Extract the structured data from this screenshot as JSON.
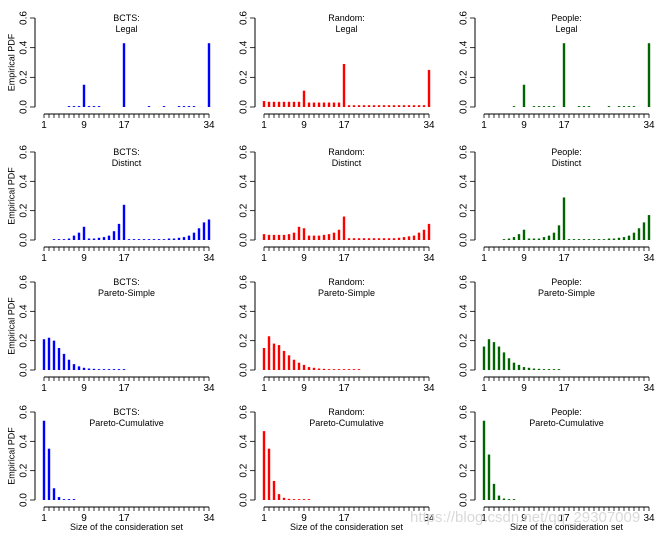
{
  "figure": {
    "ylabel": "Empirical PDF",
    "xlabel": "Size of the consideration set",
    "watermark": "https://blog.csdn.net/qq_29307009"
  },
  "chart_data": {
    "type": "bar",
    "layout": "4 rows x 3 columns",
    "x_ticks": [
      1,
      9,
      17,
      34
    ],
    "x_range": [
      1,
      34
    ],
    "y_ticks": [
      "0.0",
      "0.2",
      "0.4",
      "0.6"
    ],
    "y_range": [
      0,
      0.6
    ],
    "grid": false,
    "methods": [
      {
        "name": "BCTS",
        "color": "#0000ff"
      },
      {
        "name": "Random",
        "color": "#ff0000"
      },
      {
        "name": "People",
        "color": "#006400"
      }
    ],
    "rows": [
      {
        "measure": "Legal",
        "series": {
          "BCTS": [
            [
              6,
              0.006
            ],
            [
              7,
              0.006
            ],
            [
              8,
              0.006
            ],
            [
              9,
              0.15
            ],
            [
              10,
              0.006
            ],
            [
              11,
              0.006
            ],
            [
              12,
              0.006
            ],
            [
              17,
              0.43
            ],
            [
              22,
              0.006
            ],
            [
              25,
              0.006
            ],
            [
              28,
              0.006
            ],
            [
              29,
              0.006
            ],
            [
              30,
              0.006
            ],
            [
              31,
              0.006
            ],
            [
              34,
              0.43
            ]
          ],
          "Random": [
            [
              1,
              0.04
            ],
            [
              2,
              0.035
            ],
            [
              3,
              0.035
            ],
            [
              4,
              0.035
            ],
            [
              5,
              0.035
            ],
            [
              6,
              0.035
            ],
            [
              7,
              0.035
            ],
            [
              8,
              0.035
            ],
            [
              9,
              0.11
            ],
            [
              10,
              0.03
            ],
            [
              11,
              0.03
            ],
            [
              12,
              0.03
            ],
            [
              13,
              0.03
            ],
            [
              14,
              0.03
            ],
            [
              15,
              0.03
            ],
            [
              16,
              0.03
            ],
            [
              17,
              0.29
            ],
            [
              18,
              0.012
            ],
            [
              19,
              0.012
            ],
            [
              20,
              0.012
            ],
            [
              21,
              0.012
            ],
            [
              22,
              0.012
            ],
            [
              23,
              0.012
            ],
            [
              24,
              0.012
            ],
            [
              25,
              0.012
            ],
            [
              26,
              0.012
            ],
            [
              27,
              0.012
            ],
            [
              28,
              0.012
            ],
            [
              29,
              0.012
            ],
            [
              30,
              0.012
            ],
            [
              31,
              0.012
            ],
            [
              32,
              0.012
            ],
            [
              33,
              0.012
            ],
            [
              34,
              0.25
            ]
          ],
          "People": [
            [
              7,
              0.006
            ],
            [
              9,
              0.15
            ],
            [
              11,
              0.006
            ],
            [
              12,
              0.006
            ],
            [
              13,
              0.006
            ],
            [
              14,
              0.006
            ],
            [
              15,
              0.006
            ],
            [
              17,
              0.43
            ],
            [
              20,
              0.006
            ],
            [
              21,
              0.006
            ],
            [
              22,
              0.006
            ],
            [
              26,
              0.006
            ],
            [
              28,
              0.006
            ],
            [
              29,
              0.006
            ],
            [
              30,
              0.006
            ],
            [
              31,
              0.006
            ],
            [
              34,
              0.43
            ]
          ]
        }
      },
      {
        "measure": "Distinct",
        "series": {
          "BCTS": [
            [
              3,
              0.006
            ],
            [
              4,
              0.006
            ],
            [
              5,
              0.006
            ],
            [
              6,
              0.01
            ],
            [
              7,
              0.03
            ],
            [
              8,
              0.05
            ],
            [
              9,
              0.09
            ],
            [
              10,
              0.01
            ],
            [
              11,
              0.01
            ],
            [
              12,
              0.015
            ],
            [
              13,
              0.02
            ],
            [
              14,
              0.03
            ],
            [
              15,
              0.06
            ],
            [
              16,
              0.11
            ],
            [
              17,
              0.24
            ],
            [
              18,
              0.006
            ],
            [
              19,
              0.006
            ],
            [
              20,
              0.006
            ],
            [
              21,
              0.006
            ],
            [
              22,
              0.006
            ],
            [
              23,
              0.006
            ],
            [
              24,
              0.006
            ],
            [
              25,
              0.006
            ],
            [
              26,
              0.01
            ],
            [
              27,
              0.01
            ],
            [
              28,
              0.015
            ],
            [
              29,
              0.02
            ],
            [
              30,
              0.03
            ],
            [
              31,
              0.05
            ],
            [
              32,
              0.08
            ],
            [
              33,
              0.12
            ],
            [
              34,
              0.14
            ]
          ],
          "Random": [
            [
              1,
              0.04
            ],
            [
              2,
              0.035
            ],
            [
              3,
              0.035
            ],
            [
              4,
              0.035
            ],
            [
              5,
              0.035
            ],
            [
              6,
              0.04
            ],
            [
              7,
              0.05
            ],
            [
              8,
              0.09
            ],
            [
              9,
              0.08
            ],
            [
              10,
              0.03
            ],
            [
              11,
              0.03
            ],
            [
              12,
              0.03
            ],
            [
              13,
              0.035
            ],
            [
              14,
              0.04
            ],
            [
              15,
              0.05
            ],
            [
              16,
              0.07
            ],
            [
              17,
              0.16
            ],
            [
              18,
              0.012
            ],
            [
              19,
              0.012
            ],
            [
              20,
              0.012
            ],
            [
              21,
              0.012
            ],
            [
              22,
              0.012
            ],
            [
              23,
              0.012
            ],
            [
              24,
              0.012
            ],
            [
              25,
              0.012
            ],
            [
              26,
              0.012
            ],
            [
              27,
              0.012
            ],
            [
              28,
              0.015
            ],
            [
              29,
              0.02
            ],
            [
              30,
              0.025
            ],
            [
              31,
              0.03
            ],
            [
              32,
              0.05
            ],
            [
              33,
              0.07
            ],
            [
              34,
              0.11
            ]
          ],
          "People": [
            [
              5,
              0.006
            ],
            [
              6,
              0.01
            ],
            [
              7,
              0.02
            ],
            [
              8,
              0.04
            ],
            [
              9,
              0.07
            ],
            [
              10,
              0.01
            ],
            [
              11,
              0.01
            ],
            [
              12,
              0.01
            ],
            [
              13,
              0.02
            ],
            [
              14,
              0.03
            ],
            [
              15,
              0.05
            ],
            [
              16,
              0.1
            ],
            [
              17,
              0.29
            ],
            [
              18,
              0.006
            ],
            [
              19,
              0.006
            ],
            [
              20,
              0.006
            ],
            [
              21,
              0.006
            ],
            [
              22,
              0.006
            ],
            [
              23,
              0.006
            ],
            [
              24,
              0.006
            ],
            [
              25,
              0.006
            ],
            [
              26,
              0.01
            ],
            [
              27,
              0.01
            ],
            [
              28,
              0.015
            ],
            [
              29,
              0.02
            ],
            [
              30,
              0.03
            ],
            [
              31,
              0.05
            ],
            [
              32,
              0.08
            ],
            [
              33,
              0.12
            ],
            [
              34,
              0.17
            ]
          ]
        }
      },
      {
        "measure": "Pareto-Simple",
        "series": {
          "BCTS": [
            [
              1,
              0.21
            ],
            [
              2,
              0.22
            ],
            [
              3,
              0.2
            ],
            [
              4,
              0.15
            ],
            [
              5,
              0.11
            ],
            [
              6,
              0.07
            ],
            [
              7,
              0.04
            ],
            [
              8,
              0.025
            ],
            [
              9,
              0.015
            ],
            [
              10,
              0.01
            ],
            [
              11,
              0.008
            ],
            [
              12,
              0.006
            ],
            [
              13,
              0.006
            ],
            [
              14,
              0.006
            ],
            [
              15,
              0.006
            ],
            [
              16,
              0.006
            ],
            [
              17,
              0.006
            ]
          ],
          "Random": [
            [
              1,
              0.15
            ],
            [
              2,
              0.23
            ],
            [
              3,
              0.18
            ],
            [
              4,
              0.17
            ],
            [
              5,
              0.13
            ],
            [
              6,
              0.1
            ],
            [
              7,
              0.07
            ],
            [
              8,
              0.05
            ],
            [
              9,
              0.035
            ],
            [
              10,
              0.02
            ],
            [
              11,
              0.015
            ],
            [
              12,
              0.01
            ],
            [
              13,
              0.008
            ],
            [
              14,
              0.006
            ],
            [
              15,
              0.006
            ],
            [
              16,
              0.006
            ],
            [
              17,
              0.006
            ],
            [
              18,
              0.006
            ],
            [
              19,
              0.006
            ],
            [
              20,
              0.006
            ]
          ],
          "People": [
            [
              1,
              0.16
            ],
            [
              2,
              0.21
            ],
            [
              3,
              0.19
            ],
            [
              4,
              0.16
            ],
            [
              5,
              0.12
            ],
            [
              6,
              0.08
            ],
            [
              7,
              0.05
            ],
            [
              8,
              0.035
            ],
            [
              9,
              0.02
            ],
            [
              10,
              0.015
            ],
            [
              11,
              0.01
            ],
            [
              12,
              0.008
            ],
            [
              13,
              0.006
            ],
            [
              14,
              0.006
            ],
            [
              15,
              0.006
            ],
            [
              16,
              0.006
            ]
          ]
        }
      },
      {
        "measure": "Pareto-Cumulative",
        "series": {
          "BCTS": [
            [
              1,
              0.54
            ],
            [
              2,
              0.35
            ],
            [
              3,
              0.08
            ],
            [
              4,
              0.02
            ],
            [
              5,
              0.006
            ],
            [
              6,
              0.006
            ],
            [
              7,
              0.006
            ]
          ],
          "Random": [
            [
              1,
              0.47
            ],
            [
              2,
              0.35
            ],
            [
              3,
              0.13
            ],
            [
              4,
              0.04
            ],
            [
              5,
              0.015
            ],
            [
              6,
              0.008
            ],
            [
              7,
              0.006
            ],
            [
              8,
              0.006
            ],
            [
              9,
              0.006
            ],
            [
              10,
              0.006
            ]
          ],
          "People": [
            [
              1,
              0.54
            ],
            [
              2,
              0.31
            ],
            [
              3,
              0.11
            ],
            [
              4,
              0.03
            ],
            [
              5,
              0.01
            ],
            [
              6,
              0.006
            ],
            [
              7,
              0.006
            ]
          ]
        }
      }
    ]
  }
}
